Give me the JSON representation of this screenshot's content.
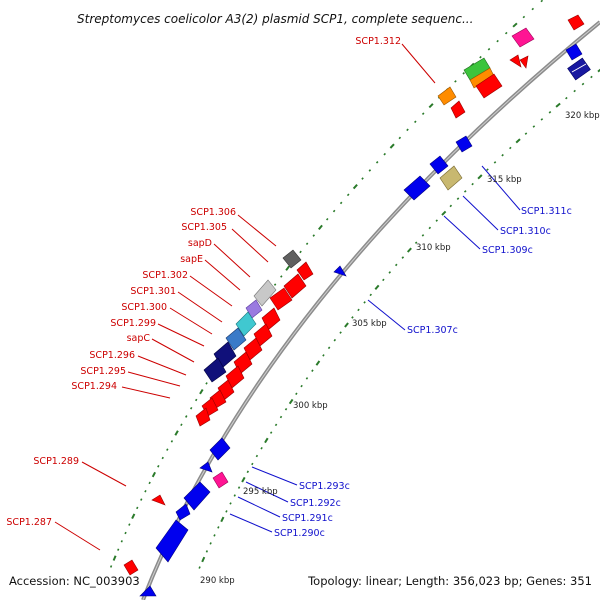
{
  "title": "Streptomyces coelicolor A3(2) plasmid SCP1, complete sequenc...",
  "footer": {
    "accession": "Accession: NC_003903",
    "summary": "Topology: linear; Length: 356,023 bp; Genes: 351"
  },
  "colors": {
    "forward": "#ff0000",
    "reverse": "#0000ee",
    "backbone": "#8c8c8c",
    "tick": "#2a7a2a",
    "fwd_label": "#cc0000",
    "rev_label": "#1010cc"
  },
  "ticks": [
    "290 kbp",
    "295 kbp",
    "300 kbp",
    "305 kbp",
    "310 kbp",
    "315 kbp",
    "320 kbp"
  ],
  "forward_labels": [
    "SCP1.312",
    "SCP1.306",
    "SCP1.305",
    "sapD",
    "sapE",
    "SCP1.302",
    "SCP1.301",
    "SCP1.300",
    "SCP1.299",
    "sapC",
    "SCP1.296",
    "SCP1.295",
    "SCP1.294",
    "SCP1.289",
    "SCP1.287"
  ],
  "reverse_labels": [
    "SCP1.311c",
    "SCP1.310c",
    "SCP1.309c",
    "SCP1.307c",
    "SCP1.293c",
    "SCP1.292c",
    "SCP1.291c",
    "SCP1.290c"
  ]
}
